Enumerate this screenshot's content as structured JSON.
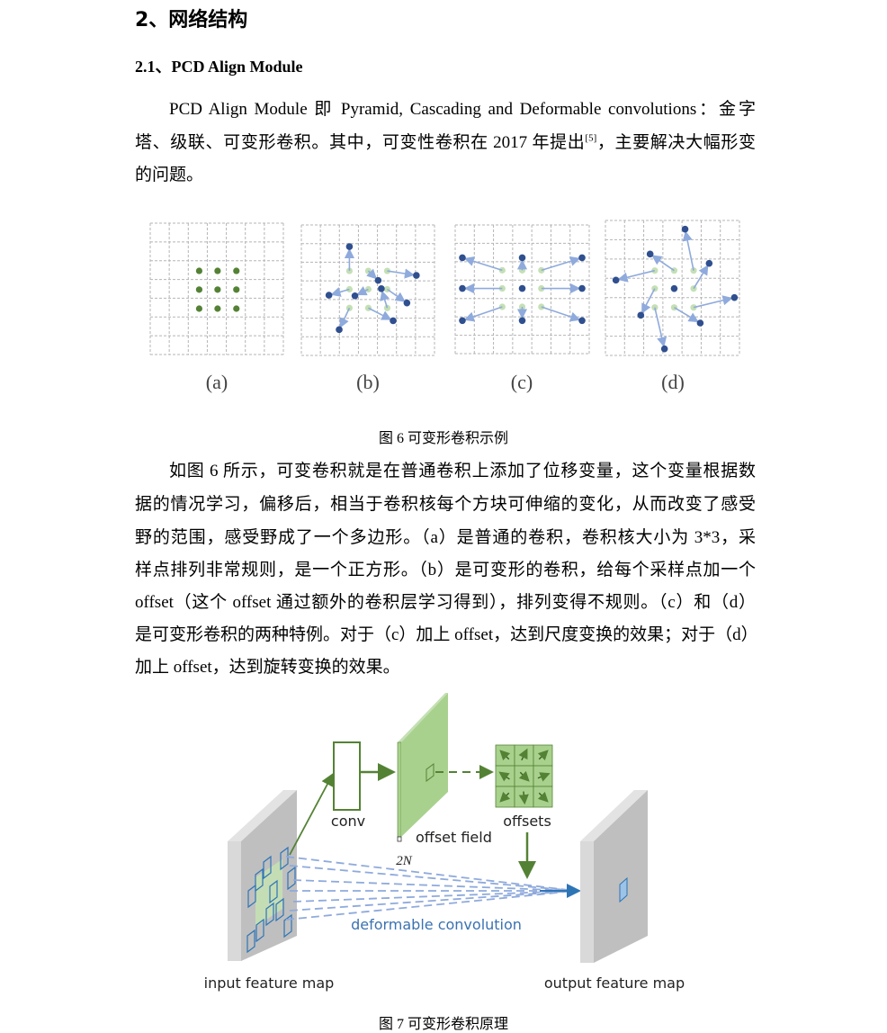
{
  "section_title": "2、网络结构",
  "subsection_title": "2.1、PCD Align Module",
  "paragraph1": {
    "line1": "PCD Align Module 即 Pyramid, Cascading and Deformable convolutions：金字",
    "line2a": "塔、级联、可变形卷积。其中，可变性卷积在 2017 年提出",
    "line2_ref": "[5]",
    "line2b": "，主要解决大幅形变",
    "line3": "的问题。"
  },
  "figure6": {
    "panel_labels": [
      "(a)",
      "(b)",
      "(c)",
      "(d)"
    ],
    "caption": "图 6  可变形卷积示例",
    "colors": {
      "grid": "#b5b5b5",
      "regular_point": "#548235",
      "original_point": "#c5e0b4",
      "deformed_point": "#2f4f8f",
      "arrow": "#8faadc"
    }
  },
  "paragraph2": [
    "如图 6 所示，可变卷积就是在普通卷积上添加了位移变量，这个变量根据数",
    "据的情况学习，偏移后，相当于卷积核每个方块可伸缩的变化，从而改变了感受",
    "野的范围，感受野成了一个多边形。（a）是普通的卷积，卷积核大小为 3*3，采",
    "样点排列非常规则，是一个正方形。（b）是可变形的卷积，给每个采样点加一个",
    "offset（这个 offset 通过额外的卷积层学习得到），排列变得不规则。（c）和（d）",
    "是可变形卷积的两种特例。对于（c）加上 offset，达到尺度变换的效果；对于（d）",
    "加上 offset，达到旋转变换的效果。"
  ],
  "figure7": {
    "labels": {
      "conv": "conv",
      "offset_field": "offset field",
      "two_n": "2N",
      "offsets": "offsets",
      "deformable_convolution": "deformable convolution",
      "input_feature_map": "input feature map",
      "output_feature_map": "output feature map"
    },
    "caption": "图 7  可变形卷积原理",
    "colors": {
      "green": "#548235",
      "light_green": "#a9d18e",
      "blue": "#2e75b6",
      "gray": "#c9c9c9"
    }
  }
}
